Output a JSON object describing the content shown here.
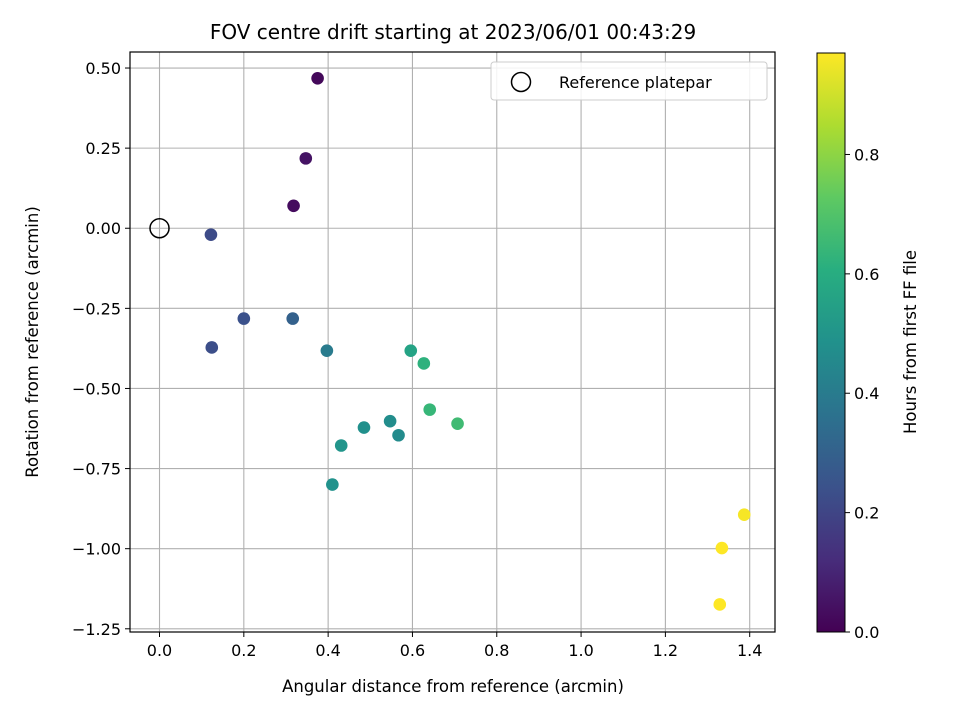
{
  "chart_data": {
    "type": "scatter",
    "title": "FOV centre drift starting at 2023/06/01 00:43:29",
    "xlabel": "Angular distance from reference (arcmin)",
    "ylabel": "Rotation from reference (arcmin)",
    "xlim": [
      -0.07,
      1.46
    ],
    "ylim": [
      -1.26,
      0.55
    ],
    "xticks": [
      0.0,
      0.2,
      0.4,
      0.6,
      0.8,
      1.0,
      1.2,
      1.4
    ],
    "xtick_labels": [
      "0.0",
      "0.2",
      "0.4",
      "0.6",
      "0.8",
      "1.0",
      "1.2",
      "1.4"
    ],
    "yticks": [
      0.5,
      0.25,
      0.0,
      -0.25,
      -0.5,
      -0.75,
      -1.0,
      -1.25
    ],
    "ytick_labels": [
      "0.50",
      "0.25",
      "0.00",
      "−0.25",
      "−0.50",
      "−0.75",
      "−1.00",
      "−1.25"
    ],
    "grid": true,
    "legend": {
      "position": "top-right",
      "entries": [
        {
          "label": "Reference platepar",
          "marker": "open-circle"
        }
      ]
    },
    "reference_point": {
      "x": 0.0,
      "y": 0.0
    },
    "colorbar": {
      "label": "Hours from first FF file",
      "range": [
        0.0,
        0.97
      ],
      "ticks": [
        0.0,
        0.2,
        0.4,
        0.6,
        0.8
      ],
      "tick_labels": [
        "0.0",
        "0.2",
        "0.4",
        "0.6",
        "0.8"
      ],
      "colormap": "viridis"
    },
    "points": [
      {
        "x": 0.375,
        "y": 0.468,
        "c": 0.02
      },
      {
        "x": 0.347,
        "y": 0.218,
        "c": 0.05
      },
      {
        "x": 0.318,
        "y": 0.07,
        "c": 0.03
      },
      {
        "x": 0.122,
        "y": -0.02,
        "c": 0.22
      },
      {
        "x": 0.2,
        "y": -0.282,
        "c": 0.24
      },
      {
        "x": 0.316,
        "y": -0.282,
        "c": 0.3
      },
      {
        "x": 0.124,
        "y": -0.372,
        "c": 0.23
      },
      {
        "x": 0.397,
        "y": -0.382,
        "c": 0.4
      },
      {
        "x": 0.596,
        "y": -0.382,
        "c": 0.56
      },
      {
        "x": 0.627,
        "y": -0.422,
        "c": 0.62
      },
      {
        "x": 0.641,
        "y": -0.566,
        "c": 0.64
      },
      {
        "x": 0.707,
        "y": -0.61,
        "c": 0.66
      },
      {
        "x": 0.547,
        "y": -0.602,
        "c": 0.47
      },
      {
        "x": 0.567,
        "y": -0.646,
        "c": 0.46
      },
      {
        "x": 0.485,
        "y": -0.622,
        "c": 0.48
      },
      {
        "x": 0.431,
        "y": -0.678,
        "c": 0.5
      },
      {
        "x": 0.41,
        "y": -0.8,
        "c": 0.49
      },
      {
        "x": 1.387,
        "y": -0.894,
        "c": 0.96
      },
      {
        "x": 1.334,
        "y": -0.998,
        "c": 0.97
      },
      {
        "x": 1.329,
        "y": -1.174,
        "c": 0.97
      }
    ]
  }
}
